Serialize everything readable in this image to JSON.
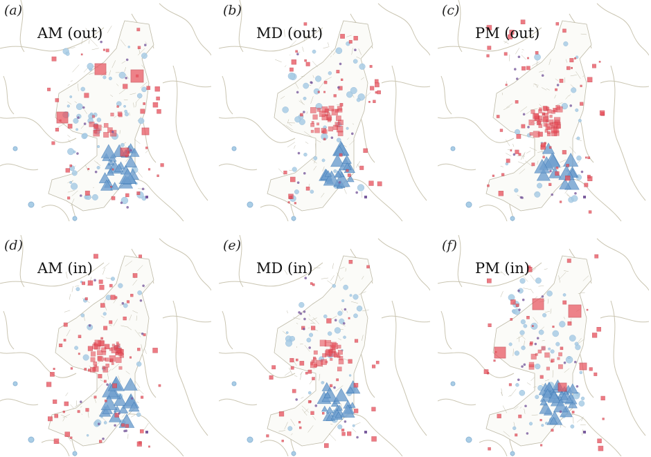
{
  "panels": [
    {
      "letter": "(a)",
      "title": "AM (out)",
      "red_intensity": 0.55,
      "blue_intensity": 0.85,
      "red_center_density": 0.3,
      "blue_south_density": 1.0,
      "big_red_squares": true
    },
    {
      "letter": "(b)",
      "title": "MD (out)",
      "red_intensity": 0.6,
      "blue_intensity": 0.6,
      "red_center_density": 0.7,
      "blue_south_density": 0.8,
      "big_red_squares": false
    },
    {
      "letter": "(c)",
      "title": "PM (out)",
      "red_intensity": 0.9,
      "blue_intensity": 0.35,
      "red_center_density": 1.0,
      "blue_south_density": 0.5,
      "big_red_squares": false
    },
    {
      "letter": "(d)",
      "title": "AM (in)",
      "red_intensity": 0.85,
      "blue_intensity": 0.4,
      "red_center_density": 1.0,
      "blue_south_density": 0.6,
      "big_red_squares": false
    },
    {
      "letter": "(e)",
      "title": "MD (in)",
      "red_intensity": 0.6,
      "blue_intensity": 0.6,
      "red_center_density": 0.7,
      "blue_south_density": 0.8,
      "big_red_squares": false
    },
    {
      "letter": "(f)",
      "title": "PM (in)",
      "red_intensity": 0.55,
      "blue_intensity": 0.85,
      "red_center_density": 0.3,
      "blue_south_density": 1.0,
      "big_red_squares": true
    }
  ],
  "colors": {
    "background": "#ffffff",
    "boundary": "#c9c4b0",
    "zone_line": "#bdb9a6",
    "red_fill": "#e8505b",
    "red_stroke": "#c0303c",
    "light_blue": "#a9cde6",
    "mid_blue": "#6f9fcf",
    "dark_blue": "#3d79b5",
    "purple": "#7a5c9e"
  },
  "marker_types": [
    "red-square",
    "light-blue-circle",
    "blue-triangle",
    "purple-dot"
  ]
}
